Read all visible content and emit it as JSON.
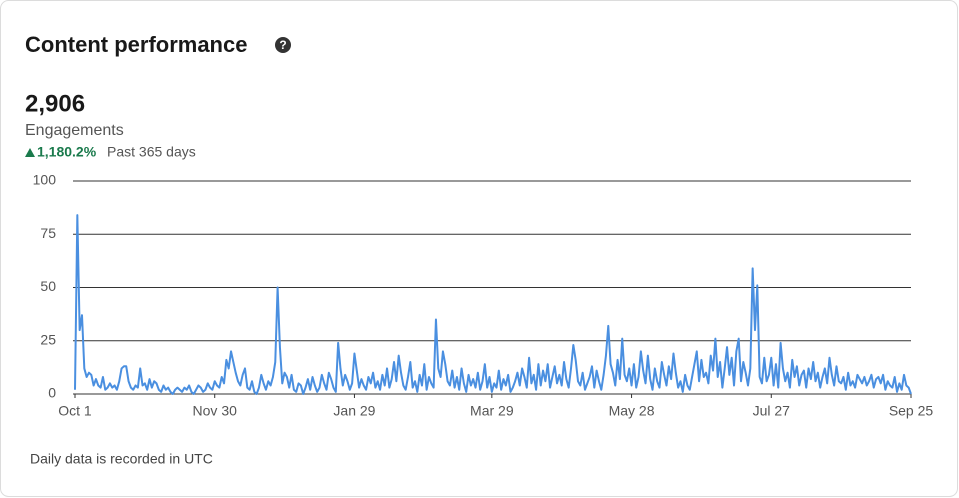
{
  "title": "Content performance",
  "summary": {
    "value": "2,906",
    "metric": "Engagements",
    "change": "1,180.2%",
    "period": "Past 365 days"
  },
  "footnote": "Daily data is recorded in UTC",
  "chart_data": {
    "type": "line",
    "color": "#4a8fe0",
    "grid": true,
    "xlim": [
      0,
      359
    ],
    "xticks": [
      {
        "value": 0,
        "label": "Oct 1"
      },
      {
        "value": 60,
        "label": "Nov 30"
      },
      {
        "value": 120,
        "label": "Jan 29"
      },
      {
        "value": 179,
        "label": "Mar 29"
      },
      {
        "value": 239,
        "label": "May 28"
      },
      {
        "value": 299,
        "label": "Jul 27"
      },
      {
        "value": 359,
        "label": "Sep 25"
      }
    ],
    "ylim": [
      0,
      100
    ],
    "yticks": [
      0,
      25,
      50,
      75,
      100
    ],
    "x": [
      0,
      1,
      2,
      3,
      4,
      5,
      6,
      7,
      8,
      9,
      10,
      11,
      12,
      13,
      14,
      15,
      16,
      17,
      18,
      19,
      20,
      21,
      22,
      23,
      24,
      25,
      26,
      27,
      28,
      29,
      30,
      31,
      32,
      33,
      34,
      35,
      36,
      37,
      38,
      39,
      40,
      41,
      42,
      43,
      44,
      45,
      46,
      47,
      48,
      49,
      50,
      51,
      52,
      53,
      54,
      55,
      56,
      57,
      58,
      59,
      60,
      61,
      62,
      63,
      64,
      65,
      66,
      67,
      68,
      69,
      70,
      71,
      72,
      73,
      74,
      75,
      76,
      77,
      78,
      79,
      80,
      81,
      82,
      83,
      84,
      85,
      86,
      87,
      88,
      89,
      90,
      91,
      92,
      93,
      94,
      95,
      96,
      97,
      98,
      99,
      100,
      101,
      102,
      103,
      104,
      105,
      106,
      107,
      108,
      109,
      110,
      111,
      112,
      113,
      114,
      115,
      116,
      117,
      118,
      119,
      120,
      121,
      122,
      123,
      124,
      125,
      126,
      127,
      128,
      129,
      130,
      131,
      132,
      133,
      134,
      135,
      136,
      137,
      138,
      139,
      140,
      141,
      142,
      143,
      144,
      145,
      146,
      147,
      148,
      149,
      150,
      151,
      152,
      153,
      154,
      155,
      156,
      157,
      158,
      159,
      160,
      161,
      162,
      163,
      164,
      165,
      166,
      167,
      168,
      169,
      170,
      171,
      172,
      173,
      174,
      175,
      176,
      177,
      178,
      179,
      180,
      181,
      182,
      183,
      184,
      185,
      186,
      187,
      188,
      189,
      190,
      191,
      192,
      193,
      194,
      195,
      196,
      197,
      198,
      199,
      200,
      201,
      202,
      203,
      204,
      205,
      206,
      207,
      208,
      209,
      210,
      211,
      212,
      213,
      214,
      215,
      216,
      217,
      218,
      219,
      220,
      221,
      222,
      223,
      224,
      225,
      226,
      227,
      228,
      229,
      230,
      231,
      232,
      233,
      234,
      235,
      236,
      237,
      238,
      239,
      240,
      241,
      242,
      243,
      244,
      245,
      246,
      247,
      248,
      249,
      250,
      251,
      252,
      253,
      254,
      255,
      256,
      257,
      258,
      259,
      260,
      261,
      262,
      263,
      264,
      265,
      266,
      267,
      268,
      269,
      270,
      271,
      272,
      273,
      274,
      275,
      276,
      277,
      278,
      279,
      280,
      281,
      282,
      283,
      284,
      285,
      286,
      287,
      288,
      289,
      290,
      291,
      292,
      293,
      294,
      295,
      296,
      297,
      298,
      299,
      300,
      301,
      302,
      303,
      304,
      305,
      306,
      307,
      308,
      309,
      310,
      311,
      312,
      313,
      314,
      315,
      316,
      317,
      318,
      319,
      320,
      321,
      322,
      323,
      324,
      325,
      326,
      327,
      328,
      329,
      330,
      331,
      332,
      333,
      334,
      335,
      336,
      337,
      338,
      339,
      340,
      341,
      342,
      343,
      344,
      345,
      346,
      347,
      348,
      349,
      350,
      351,
      352,
      353,
      354,
      355,
      356,
      357,
      358,
      359
    ],
    "values": [
      2,
      84,
      30,
      37,
      12,
      8,
      10,
      9,
      4,
      7,
      4,
      3,
      8,
      2,
      3,
      5,
      3,
      4,
      2,
      6,
      12,
      13,
      13,
      6,
      3,
      2,
      4,
      3,
      12,
      4,
      5,
      2,
      7,
      3,
      6,
      5,
      2,
      1,
      4,
      2,
      3,
      1,
      0,
      2,
      3,
      2,
      1,
      3,
      2,
      4,
      1,
      0,
      2,
      4,
      3,
      1,
      2,
      5,
      3,
      2,
      6,
      4,
      3,
      8,
      5,
      16,
      12,
      20,
      15,
      10,
      6,
      4,
      9,
      12,
      3,
      2,
      6,
      1,
      0,
      3,
      9,
      5,
      2,
      6,
      4,
      8,
      15,
      50,
      22,
      5,
      10,
      8,
      3,
      9,
      2,
      1,
      5,
      4,
      0,
      3,
      7,
      2,
      8,
      4,
      1,
      3,
      9,
      5,
      2,
      10,
      7,
      3,
      1,
      24,
      12,
      4,
      9,
      6,
      2,
      5,
      19,
      11,
      3,
      7,
      4,
      2,
      8,
      5,
      10,
      3,
      6,
      2,
      9,
      4,
      12,
      3,
      7,
      15,
      6,
      18,
      10,
      4,
      2,
      8,
      15,
      3,
      6,
      1,
      9,
      4,
      14,
      2,
      8,
      5,
      3,
      35,
      12,
      8,
      20,
      14,
      6,
      4,
      11,
      3,
      8,
      2,
      12,
      5,
      1,
      9,
      4,
      7,
      3,
      10,
      2,
      6,
      14,
      3,
      8,
      1,
      5,
      3,
      11,
      2,
      7,
      4,
      9,
      1,
      3,
      6,
      10,
      4,
      12,
      8,
      3,
      17,
      5,
      9,
      2,
      14,
      4,
      11,
      6,
      14,
      3,
      8,
      13,
      5,
      9,
      4,
      15,
      7,
      3,
      12,
      23,
      16,
      6,
      4,
      10,
      2,
      5,
      8,
      13,
      3,
      11,
      6,
      2,
      9,
      18,
      32,
      14,
      10,
      4,
      16,
      7,
      26,
      9,
      6,
      12,
      4,
      14,
      3,
      8,
      20,
      11,
      5,
      18,
      7,
      2,
      12,
      6,
      3,
      15,
      9,
      4,
      13,
      7,
      19,
      10,
      3,
      6,
      1,
      9,
      4,
      2,
      8,
      14,
      20,
      6,
      16,
      8,
      10,
      5,
      18,
      11,
      26,
      8,
      15,
      3,
      12,
      22,
      9,
      17,
      4,
      20,
      26,
      6,
      15,
      10,
      4,
      12,
      59,
      30,
      51,
      8,
      5,
      17,
      6,
      9,
      17,
      4,
      14,
      3,
      24,
      12,
      6,
      10,
      3,
      16,
      8,
      13,
      4,
      9,
      11,
      3,
      12,
      7,
      15,
      6,
      10,
      3,
      8,
      12,
      5,
      17,
      9,
      4,
      13,
      6,
      5,
      8,
      2,
      10,
      4,
      6,
      3,
      9,
      7,
      5,
      8,
      4,
      6,
      9,
      3,
      7,
      8,
      5,
      9,
      2,
      6,
      4,
      3,
      8,
      1,
      5,
      2,
      9,
      4,
      3,
      0
    ]
  }
}
